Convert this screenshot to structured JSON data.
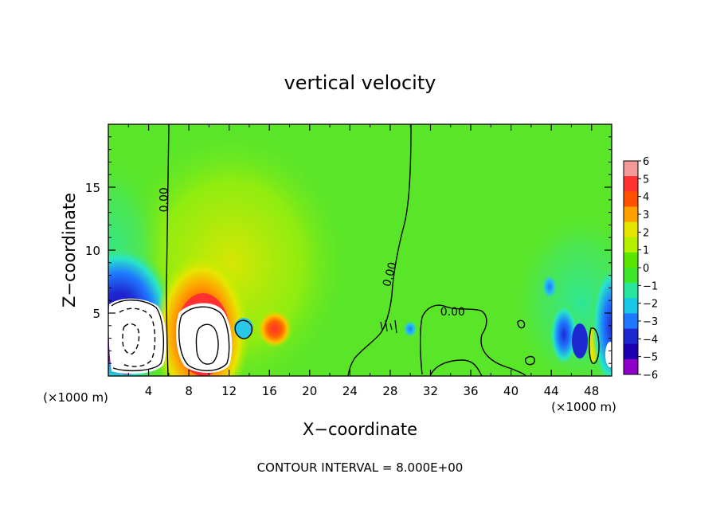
{
  "chart_data": {
    "type": "heatmap",
    "title": "vertical velocity",
    "xlabel": "X−coordinate",
    "ylabel": "Z−coordinate",
    "x_unit_left": "(×1000 m)",
    "x_unit_right": "(×1000 m)",
    "footer": "CONTOUR INTERVAL = 8.000E+00",
    "xlim": [
      0,
      50
    ],
    "ylim": [
      0,
      20
    ],
    "x_ticks": [
      4,
      8,
      12,
      16,
      20,
      24,
      28,
      32,
      36,
      40,
      44,
      48
    ],
    "y_ticks": [
      5,
      10,
      15
    ],
    "contour_labels": [
      {
        "text": "0.00",
        "x": 5.9,
        "y": 14.0,
        "rotation": -90
      },
      {
        "text": "0.00",
        "x": 28.3,
        "y": 8.0,
        "rotation": -75
      },
      {
        "text": "0.00",
        "x": 34.2,
        "y": 4.8,
        "rotation": 0
      }
    ],
    "colorbar": {
      "min": -6,
      "max": 6,
      "tick_labels": [
        "6",
        "5",
        "4",
        "3",
        "2",
        "1",
        "0",
        "−1",
        "−2",
        "−3",
        "−4",
        "−5",
        "−6"
      ],
      "colors": [
        "#f49a9a",
        "#ff3030",
        "#ff5000",
        "#ffa000",
        "#e6e600",
        "#b4f000",
        "#5ae600",
        "#3ce628",
        "#28e6a0",
        "#18c8e6",
        "#1e78ff",
        "#1e28d2",
        "#1e00b4",
        "#8c00c8"
      ]
    },
    "background_color": "#5ae628",
    "features": [
      {
        "type": "downdraft",
        "x": 1.0,
        "y": 5.5,
        "sx": 2.6,
        "sy": 3.0,
        "amp": -8
      },
      {
        "type": "updraft",
        "x": 9.0,
        "y": 4.0,
        "sx": 1.9,
        "sy": 3.2,
        "amp": 8
      },
      {
        "type": "updraft",
        "x": 16.5,
        "y": 4.0,
        "sx": 1.0,
        "sy": 1.0,
        "amp": 4
      },
      {
        "type": "downdraft",
        "x": 46.0,
        "y": 4.0,
        "sx": 1.4,
        "sy": 2.6,
        "amp": -3
      },
      {
        "type": "downdraft",
        "x": 50.0,
        "y": 5.0,
        "sx": 1.3,
        "sy": 2.5,
        "amp": -7
      }
    ]
  }
}
